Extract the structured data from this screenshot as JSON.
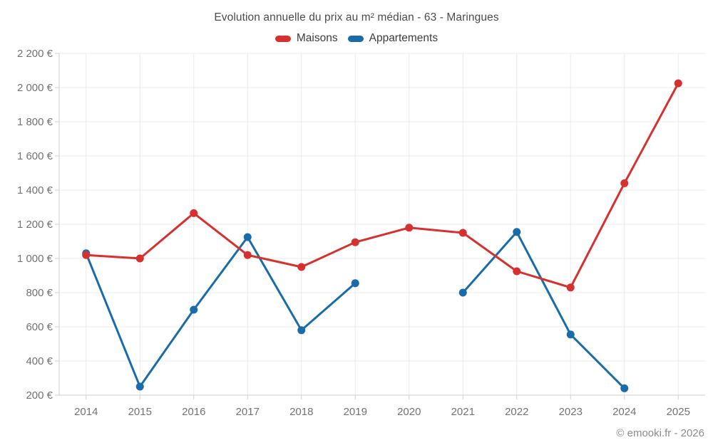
{
  "title": "Evolution annuelle du prix au m² médian - 63 - Maringues",
  "watermark": "© emooki.fr - 2026",
  "colors": {
    "maisons": "#d6312e",
    "appartements": "#1a6ca8",
    "grid": "#ebebeb",
    "axis": "#cfcfcf",
    "tick_text": "#737373",
    "title_text": "#4c4c4c"
  },
  "legend": [
    {
      "label": "Maisons",
      "color": "#d6312e"
    },
    {
      "label": "Appartements",
      "color": "#1a6ca8"
    }
  ],
  "chart_data": {
    "type": "line",
    "title": "Evolution annuelle du prix au m² médian - 63 - Maringues",
    "categories": [
      "2014",
      "2015",
      "2016",
      "2017",
      "2018",
      "2019",
      "2020",
      "2021",
      "2022",
      "2023",
      "2024",
      "2025"
    ],
    "series": [
      {
        "name": "Maisons",
        "color": "#d6312e",
        "values": [
          1020,
          1000,
          1265,
          1020,
          950,
          1095,
          1180,
          1150,
          925,
          830,
          1440,
          2025
        ]
      },
      {
        "name": "Appartements",
        "color": "#1a6ca8",
        "values": [
          1030,
          250,
          700,
          1125,
          580,
          855,
          null,
          800,
          1155,
          555,
          240,
          null
        ]
      }
    ],
    "xlabel": "",
    "ylabel": "",
    "ylim": [
      200,
      2200
    ],
    "ytick_step": 200,
    "ytick_suffix": " €",
    "grid": true,
    "legend_position": "top",
    "point_markers": true
  }
}
